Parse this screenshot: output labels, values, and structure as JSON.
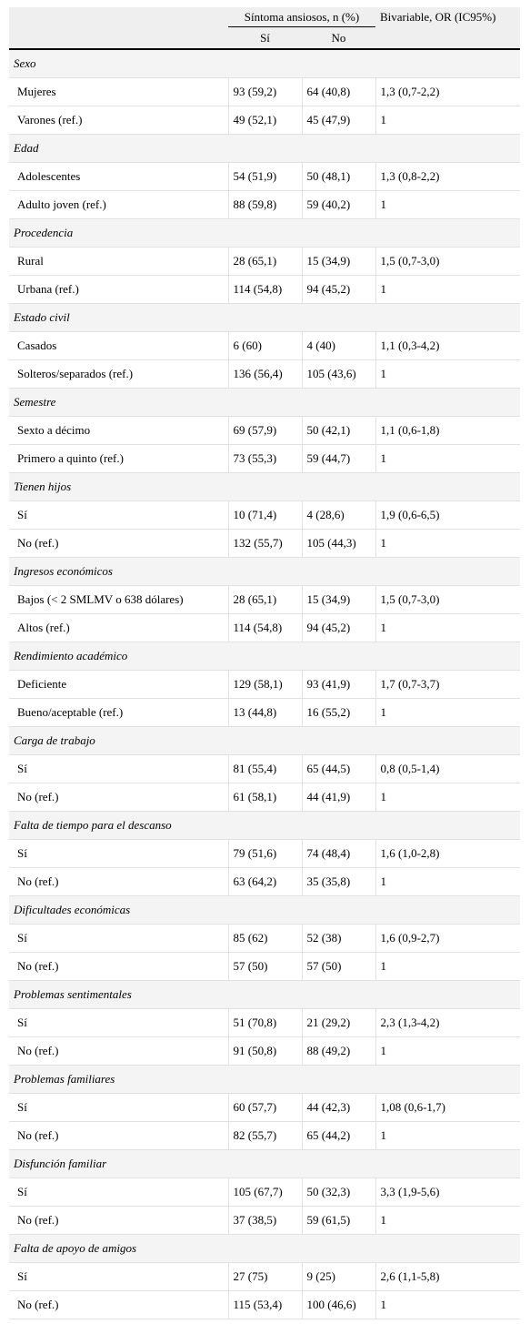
{
  "header": {
    "group_label": "Síntoma ansiosos, n (%)",
    "si_label": "Sí",
    "no_label": "No",
    "or_label": "Bivariable, OR (IC95%)"
  },
  "sections": [
    {
      "title": "Sexo",
      "rows": [
        {
          "label": "Mujeres",
          "si": "93 (59,2)",
          "no": "64 (40,8)",
          "or": "1,3 (0,7-2,2)"
        },
        {
          "label": "Varones (ref.)",
          "si": "49 (52,1)",
          "no": "45 (47,9)",
          "or": "1"
        }
      ]
    },
    {
      "title": "Edad",
      "rows": [
        {
          "label": "Adolescentes",
          "si": "54 (51,9)",
          "no": "50 (48,1)",
          "or": "1,3 (0,8-2,2)"
        },
        {
          "label": "Adulto joven (ref.)",
          "si": "88 (59,8)",
          "no": "59 (40,2)",
          "or": "1"
        }
      ]
    },
    {
      "title": "Procedencia",
      "rows": [
        {
          "label": "Rural",
          "si": "28 (65,1)",
          "no": "15 (34,9)",
          "or": "1,5 (0,7-3,0)"
        },
        {
          "label": "Urbana (ref.)",
          "si": "114 (54,8)",
          "no": "94 (45,2)",
          "or": "1"
        }
      ]
    },
    {
      "title": "Estado civil",
      "rows": [
        {
          "label": "Casados",
          "si": "6 (60)",
          "no": "4 (40)",
          "or": "1,1 (0,3-4,2)"
        },
        {
          "label": "Solteros/separados (ref.)",
          "si": "136 (56,4)",
          "no": "105 (43,6)",
          "or": "1"
        }
      ]
    },
    {
      "title": "Semestre",
      "rows": [
        {
          "label": "Sexto a décimo",
          "si": "69 (57,9)",
          "no": "50 (42,1)",
          "or": "1,1 (0,6-1,8)"
        },
        {
          "label": "Primero a quinto (ref.)",
          "si": "73 (55,3)",
          "no": "59 (44,7)",
          "or": "1"
        }
      ]
    },
    {
      "title": "Tienen hijos",
      "rows": [
        {
          "label": "Sí",
          "si": "10 (71,4)",
          "no": "4 (28,6)",
          "or": "1,9 (0,6-6,5)"
        },
        {
          "label": "No (ref.)",
          "si": "132 (55,7)",
          "no": "105 (44,3)",
          "or": "1"
        }
      ]
    },
    {
      "title": "Ingresos económicos",
      "rows": [
        {
          "label": "Bajos (< 2 SMLMV o 638 dólares)",
          "si": "28 (65,1)",
          "no": "15 (34,9)",
          "or": "1,5 (0,7-3,0)"
        },
        {
          "label": "Altos (ref.)",
          "si": "114 (54,8)",
          "no": "94 (45,2)",
          "or": "1"
        }
      ]
    },
    {
      "title": "Rendimiento académico",
      "rows": [
        {
          "label": "Deficiente",
          "si": "129 (58,1)",
          "no": "93 (41,9)",
          "or": "1,7 (0,7-3,7)"
        },
        {
          "label": "Bueno/aceptable (ref.)",
          "si": "13 (44,8)",
          "no": "16 (55,2)",
          "or": "1"
        }
      ]
    },
    {
      "title": "Carga de trabajo",
      "rows": [
        {
          "label": "Sí",
          "si": "81 (55,4)",
          "no": "65 (44,5)",
          "or": "0,8 (0,5-1,4)"
        },
        {
          "label": "No (ref.)",
          "si": "61 (58,1)",
          "no": "44 (41,9)",
          "or": "1"
        }
      ]
    },
    {
      "title": "Falta de tiempo para el descanso",
      "rows": [
        {
          "label": "Sí",
          "si": "79 (51,6)",
          "no": "74 (48,4)",
          "or": "1,6 (1,0-2,8)"
        },
        {
          "label": "No (ref.)",
          "si": "63 (64,2)",
          "no": "35 (35,8)",
          "or": "1"
        }
      ]
    },
    {
      "title": "Dificultades económicas",
      "rows": [
        {
          "label": "Sí",
          "si": "85 (62)",
          "no": "52 (38)",
          "or": "1,6 (0,9-2,7)"
        },
        {
          "label": "No (ref.)",
          "si": "57 (50)",
          "no": "57 (50)",
          "or": "1"
        }
      ]
    },
    {
      "title": "Problemas sentimentales",
      "rows": [
        {
          "label": "Sí",
          "si": "51 (70,8)",
          "no": "21 (29,2)",
          "or": "2,3 (1,3-4,2)"
        },
        {
          "label": "No (ref.)",
          "si": "91 (50,8)",
          "no": "88 (49,2)",
          "or": "1"
        }
      ]
    },
    {
      "title": "Problemas familiares",
      "rows": [
        {
          "label": "Sí",
          "si": "60 (57,7)",
          "no": "44 (42,3)",
          "or": "1,08 (0,6-1,7)"
        },
        {
          "label": "No (ref.)",
          "si": "82 (55,7)",
          "no": "65 (44,2)",
          "or": "1"
        }
      ]
    },
    {
      "title": "Disfunción familiar",
      "rows": [
        {
          "label": "Sí",
          "si": "105 (67,7)",
          "no": "50 (32,3)",
          "or": "3,3 (1,9-5,6)"
        },
        {
          "label": "No (ref.)",
          "si": "37 (38,5)",
          "no": "59 (61,5)",
          "or": "1"
        }
      ]
    },
    {
      "title": "Falta de apoyo de amigos",
      "rows": [
        {
          "label": "Sí",
          "si": "27 (75)",
          "no": "9 (25)",
          "or": "2,6 (1,1-5,8)"
        },
        {
          "label": "No (ref.)",
          "si": "115 (53,4)",
          "no": "100 (46,6)",
          "or": "1"
        }
      ]
    }
  ]
}
